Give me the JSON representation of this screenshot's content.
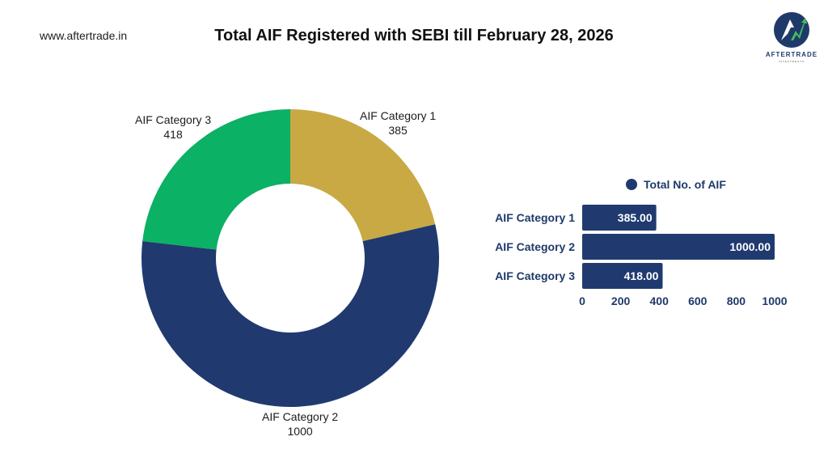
{
  "header": {
    "site_url": "www.aftertrade.in",
    "title": "Total AIF Registered with SEBI till February 28, 2026",
    "logo_text": "AFTERTRADE",
    "logo_subtext": "INVESTMENTS"
  },
  "colors": {
    "category_1": "#c9a943",
    "category_2": "#203a70",
    "category_3": "#0bb164",
    "bar": "#203a70"
  },
  "chart_data": [
    {
      "type": "pie",
      "style": "donut",
      "categories": [
        "AIF Category 1",
        "AIF Category 2",
        "AIF Category 3"
      ],
      "values": [
        385,
        1000,
        418
      ],
      "labels": [
        {
          "name": "AIF Category 1",
          "value": "385"
        },
        {
          "name": "AIF Category 2",
          "value": "1000"
        },
        {
          "name": "AIF Category 3",
          "value": "418"
        }
      ]
    },
    {
      "type": "bar",
      "orientation": "horizontal",
      "categories": [
        "AIF Category 1",
        "AIF Category 2",
        "AIF Category 3"
      ],
      "series": [
        {
          "name": "Total No. of AIF",
          "values": [
            385,
            1000,
            418
          ]
        }
      ],
      "data_labels": [
        "385.00",
        "1000.00",
        "418.00"
      ],
      "xticks": [
        0,
        200,
        400,
        600,
        800,
        1000
      ],
      "xlim": [
        0,
        1000
      ],
      "legend": "top",
      "grid": false
    }
  ]
}
